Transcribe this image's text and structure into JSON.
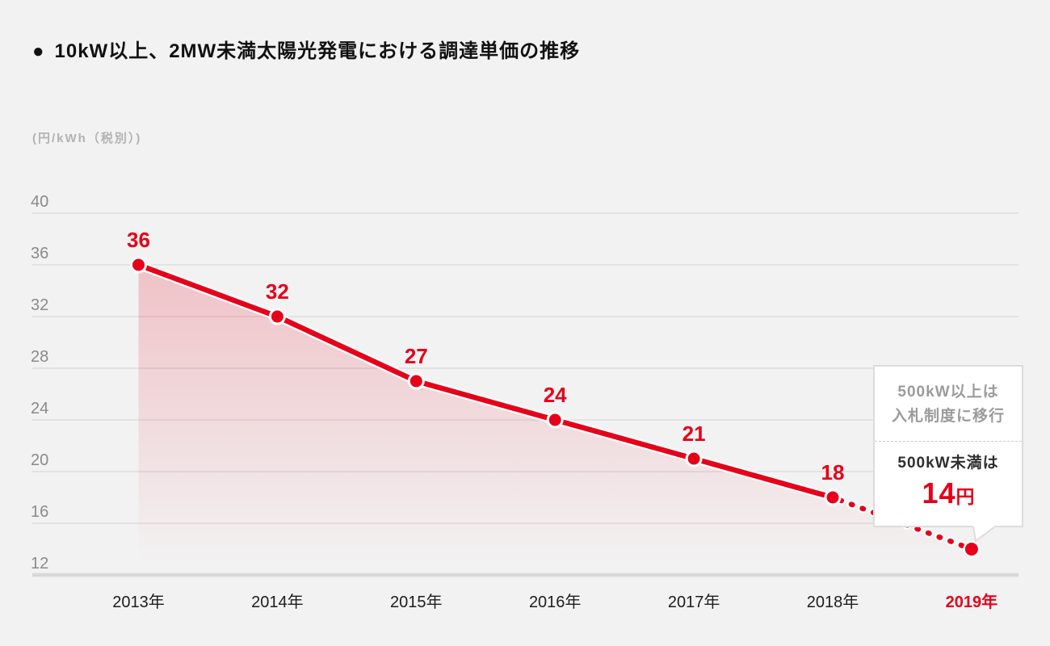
{
  "title": {
    "bullet": "●",
    "text": "10kW以上、2MW未満太陽光発電における調達単価の推移"
  },
  "chart_data": {
    "type": "line",
    "title": "10kW以上、2MW未満太陽光発電における調達単価の推移",
    "unit_label": "(円/kWh（税別）)",
    "x_labels": [
      "2013年",
      "2014年",
      "2015年",
      "2016年",
      "2017年",
      "2018年",
      "2019年"
    ],
    "values": [
      36,
      32,
      27,
      24,
      21,
      18,
      14
    ],
    "value_labels": [
      "36",
      "32",
      "27",
      "24",
      "21",
      "18"
    ],
    "y_ticks": [
      40,
      36,
      32,
      28,
      24,
      20,
      16,
      12
    ],
    "ylim": [
      12,
      40
    ],
    "xlabel": "",
    "ylabel": "円/kWh（税別）",
    "grid": true,
    "legend": false,
    "solid_segment_end_index": 5,
    "dotted_segment": [
      5,
      6
    ],
    "highlighted_x_label": "2019年",
    "colors": {
      "line": "#e60019",
      "point": "#e60019",
      "point_halo": "#ffffff",
      "label": "#e60019",
      "area_top": "rgba(230,0,25,0.20)",
      "area_bottom": "rgba(230,0,25,0)",
      "grid": "#dcdcdc",
      "axis": "#d8d8d8",
      "y_tick_text": "#8a8a8a",
      "x_tick_text": "#1d1d1d",
      "background": "#f2f2f2"
    }
  },
  "callout": {
    "upper_line1": "500kW以上は",
    "upper_line2": "入札制度に移行",
    "lower_label": "500kW未満は",
    "price_number": "14",
    "price_unit": "円"
  }
}
